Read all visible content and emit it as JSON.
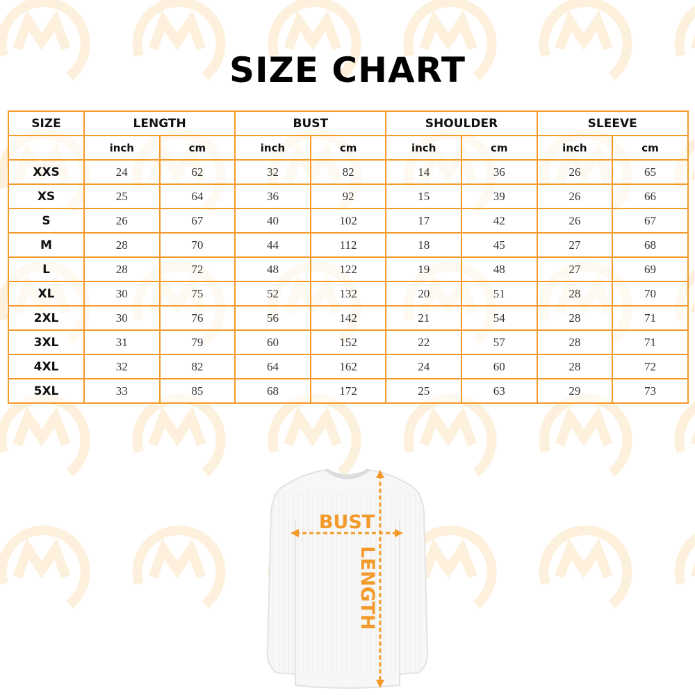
{
  "title": "SIZE CHART",
  "accent_color": "#f39a2a",
  "table": {
    "size_header": "SIZE",
    "groups": [
      "LENGTH",
      "BUST",
      "SHOULDER",
      "SLEEVE"
    ],
    "units": [
      "inch",
      "cm",
      "inch",
      "cm",
      "inch",
      "cm",
      "inch",
      "cm"
    ],
    "rows": [
      {
        "size": "XXS",
        "values": [
          "24",
          "62",
          "32",
          "82",
          "14",
          "36",
          "26",
          "65"
        ]
      },
      {
        "size": "XS",
        "values": [
          "25",
          "64",
          "36",
          "92",
          "15",
          "39",
          "26",
          "66"
        ]
      },
      {
        "size": "S",
        "values": [
          "26",
          "67",
          "40",
          "102",
          "17",
          "42",
          "26",
          "67"
        ]
      },
      {
        "size": "M",
        "values": [
          "28",
          "70",
          "44",
          "112",
          "18",
          "45",
          "27",
          "68"
        ]
      },
      {
        "size": "L",
        "values": [
          "28",
          "72",
          "48",
          "122",
          "19",
          "48",
          "27",
          "69"
        ]
      },
      {
        "size": "XL",
        "values": [
          "30",
          "75",
          "52",
          "132",
          "20",
          "51",
          "28",
          "70"
        ]
      },
      {
        "size": "2XL",
        "values": [
          "30",
          "76",
          "56",
          "142",
          "21",
          "54",
          "28",
          "71"
        ]
      },
      {
        "size": "3XL",
        "values": [
          "31",
          "79",
          "60",
          "152",
          "22",
          "57",
          "28",
          "71"
        ]
      },
      {
        "size": "4XL",
        "values": [
          "32",
          "82",
          "64",
          "162",
          "24",
          "60",
          "28",
          "72"
        ]
      },
      {
        "size": "5XL",
        "values": [
          "33",
          "85",
          "68",
          "172",
          "25",
          "63",
          "29",
          "73"
        ]
      }
    ]
  },
  "diagram": {
    "bust_label": "BUST",
    "length_label": "LENGTH"
  }
}
